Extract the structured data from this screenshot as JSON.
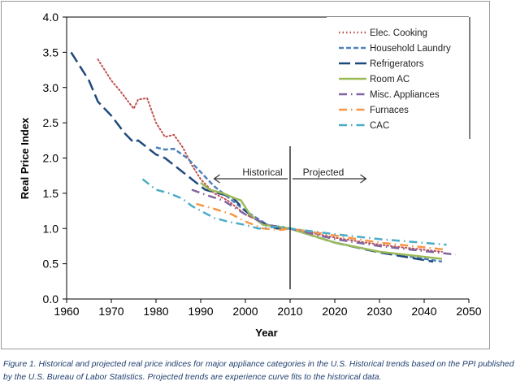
{
  "chart_data": {
    "type": "line",
    "xlabel": "Year",
    "ylabel": "Real Price Index",
    "xlim": [
      1960,
      2050
    ],
    "ylim": [
      0.0,
      4.0
    ],
    "xticks": [
      "1960",
      "1970",
      "1980",
      "1990",
      "2000",
      "2010",
      "2020",
      "2030",
      "2040",
      "2050"
    ],
    "yticks": [
      "0.0",
      "0.5",
      "1.0",
      "1.5",
      "2.0",
      "2.5",
      "3.0",
      "3.5",
      "4.0"
    ],
    "grid": false,
    "legend": "top-right",
    "annotations": {
      "historical": "Historical",
      "projected": "Projected",
      "divider_year": 2010
    },
    "series": [
      {
        "name": "Elec. Cooking",
        "color": "#c0504d",
        "style": "dotted",
        "x": [
          1967,
          1970,
          1972,
          1975,
          1976,
          1978,
          1980,
          1982,
          1984,
          1986,
          1988,
          1990,
          1993,
          1996,
          2000,
          2005,
          2010,
          2020,
          2030,
          2044
        ],
        "y": [
          3.4,
          3.1,
          2.95,
          2.7,
          2.83,
          2.85,
          2.5,
          2.3,
          2.33,
          2.15,
          1.9,
          1.7,
          1.5,
          1.4,
          1.2,
          1.05,
          1.0,
          0.87,
          0.77,
          0.67
        ]
      },
      {
        "name": "Household Laundry",
        "color": "#4f81bd",
        "style": "dashed",
        "x": [
          1980,
          1982,
          1984,
          1987,
          1990,
          1993,
          1996,
          2000,
          2005,
          2010,
          2020,
          2030,
          2044
        ],
        "y": [
          2.15,
          2.12,
          2.13,
          2.0,
          1.8,
          1.6,
          1.45,
          1.25,
          1.05,
          1.0,
          0.8,
          0.67,
          0.53
        ]
      },
      {
        "name": "Refrigerators",
        "color": "#1f497d",
        "style": "longdash",
        "x": [
          1961,
          1965,
          1967,
          1970,
          1973,
          1975,
          1976,
          1980,
          1982,
          1985,
          1988,
          1991,
          1994,
          1997,
          2000,
          2003,
          2007,
          2010,
          2020,
          2030,
          2042
        ],
        "y": [
          3.5,
          3.1,
          2.8,
          2.6,
          2.35,
          2.22,
          2.25,
          2.05,
          2.0,
          1.85,
          1.7,
          1.55,
          1.5,
          1.45,
          1.25,
          1.1,
          1.0,
          1.0,
          0.8,
          0.66,
          0.53
        ]
      },
      {
        "name": "Room AC",
        "color": "#9bbb59",
        "style": "solid",
        "x": [
          1990,
          1992,
          1995,
          1998,
          1999,
          2001,
          2004,
          2007,
          2010,
          2020,
          2030,
          2044
        ],
        "y": [
          1.65,
          1.55,
          1.5,
          1.42,
          1.4,
          1.2,
          1.05,
          1.03,
          1.0,
          0.8,
          0.67,
          0.57
        ]
      },
      {
        "name": "Misc. Appliances",
        "color": "#8064a2",
        "style": "dashdot",
        "x": [
          1988,
          1991,
          1995,
          2000,
          2005,
          2010,
          2020,
          2030,
          2047
        ],
        "y": [
          1.55,
          1.48,
          1.4,
          1.2,
          1.05,
          1.0,
          0.85,
          0.75,
          0.63
        ]
      },
      {
        "name": "Furnaces",
        "color": "#f79646",
        "style": "dashdot",
        "x": [
          1989,
          1993,
          1997,
          2000,
          2004,
          2008,
          2010,
          2020,
          2030,
          2045
        ],
        "y": [
          1.35,
          1.28,
          1.2,
          1.1,
          1.0,
          0.98,
          1.0,
          0.9,
          0.8,
          0.7
        ]
      },
      {
        "name": "CAC",
        "color": "#4bacc6",
        "style": "dashdot",
        "x": [
          1977,
          1980,
          1983,
          1986,
          1988,
          1993,
          1996,
          2000,
          2003,
          2008,
          2010,
          2020,
          2030,
          2045
        ],
        "y": [
          1.7,
          1.55,
          1.5,
          1.42,
          1.32,
          1.15,
          1.1,
          1.05,
          1.0,
          1.03,
          1.0,
          0.92,
          0.85,
          0.77
        ]
      }
    ]
  },
  "caption": "Figure 1. Historical and projected real price indices for major appliance categories in the U.S. Historical trends based on the PPI published by the U.S. Bureau of Labor Statistics. Projected trends are experience curve fits to the historical data."
}
